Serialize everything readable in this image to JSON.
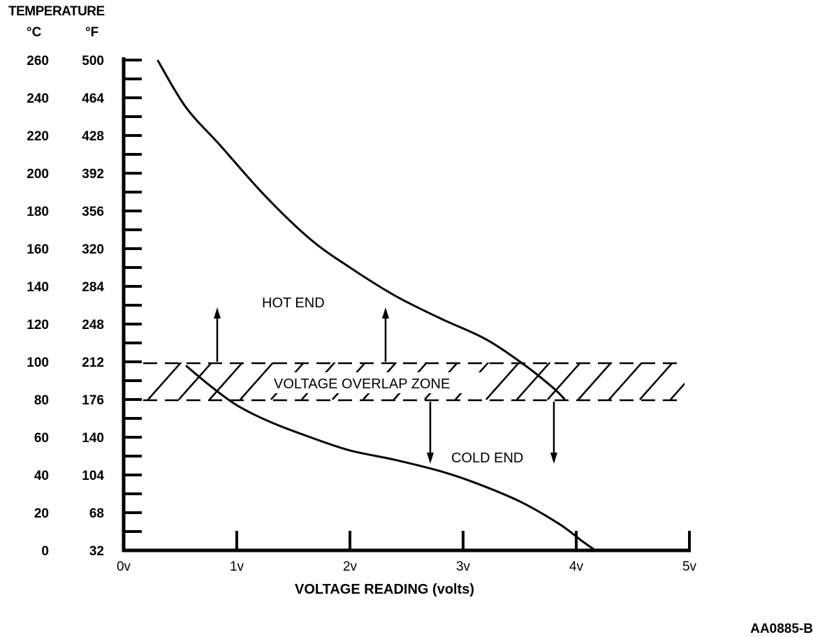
{
  "chart_data": {
    "type": "line",
    "y_title": "TEMPERATURE",
    "y_units": [
      "°C",
      "°F"
    ],
    "y_ticks_c": [
      0,
      20,
      40,
      60,
      80,
      100,
      120,
      140,
      160,
      180,
      200,
      220,
      240,
      260
    ],
    "y_ticks_f": [
      32,
      68,
      104,
      140,
      176,
      212,
      248,
      284,
      320,
      356,
      392,
      428,
      464,
      500
    ],
    "x_ticks": [
      "0v",
      "1v",
      "2v",
      "3v",
      "4v",
      "5v"
    ],
    "xlabel": "VOLTAGE READING (volts)",
    "xlim": [
      0,
      5
    ],
    "ylim": [
      0,
      260
    ],
    "overlap_zone": {
      "label": "VOLTAGE OVERLAP ZONE",
      "y_low": 80,
      "y_high": 100
    },
    "annotations": {
      "hot": "HOT END",
      "cold": "COLD END"
    },
    "series": [
      {
        "points": [
          [
            0.3,
            260
          ],
          [
            0.55,
            235
          ],
          [
            0.85,
            215
          ],
          [
            1.25,
            188
          ],
          [
            1.65,
            165
          ],
          [
            2.0,
            150
          ],
          [
            2.4,
            135
          ],
          [
            2.8,
            123
          ],
          [
            3.2,
            112
          ],
          [
            3.55,
            98
          ],
          [
            3.8,
            86
          ],
          [
            3.9,
            80
          ]
        ]
      },
      {
        "points": [
          [
            0.55,
            98
          ],
          [
            0.75,
            88
          ],
          [
            1.0,
            77
          ],
          [
            1.3,
            68
          ],
          [
            1.65,
            60
          ],
          [
            2.0,
            53
          ],
          [
            2.4,
            48
          ],
          [
            2.8,
            42
          ],
          [
            3.1,
            36
          ],
          [
            3.5,
            26
          ],
          [
            3.85,
            14
          ],
          [
            4.05,
            5
          ],
          [
            4.17,
            0
          ]
        ]
      }
    ],
    "grid": false,
    "legend": "none"
  },
  "figure_id": "AA0885-B"
}
